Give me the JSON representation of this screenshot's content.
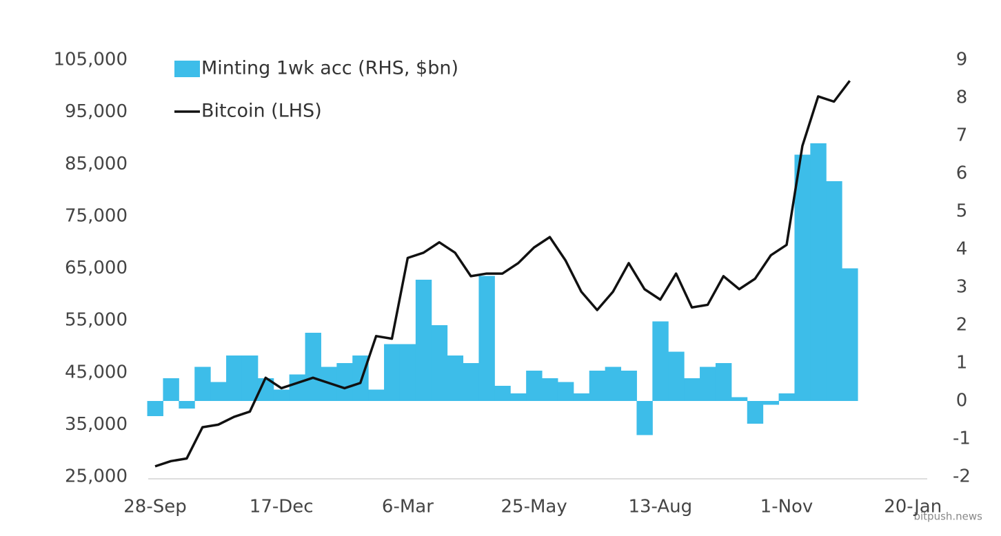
{
  "chart_data": {
    "type": "bar-line",
    "categories": [
      "28-Sep",
      null,
      null,
      null,
      null,
      null,
      null,
      null,
      "17-Dec",
      null,
      null,
      null,
      null,
      null,
      null,
      null,
      "6-Mar",
      null,
      null,
      null,
      null,
      null,
      null,
      null,
      "25-May",
      null,
      null,
      null,
      null,
      null,
      null,
      null,
      "13-Aug",
      null,
      null,
      null,
      null,
      null,
      null,
      null,
      "1-Nov",
      null,
      null,
      null,
      null,
      null,
      null,
      null,
      "20-Jan"
    ],
    "series": [
      {
        "name": "Minting 1wk acc (RHS, $bn)",
        "type": "bar",
        "axis": "y2",
        "color": "#3dbde9",
        "values": [
          -0.4,
          0.6,
          -0.2,
          0.9,
          0.5,
          1.2,
          1.2,
          0.6,
          0.3,
          0.7,
          1.8,
          0.9,
          1.0,
          1.2,
          0.3,
          1.5,
          1.5,
          3.2,
          2.0,
          1.2,
          1.0,
          3.3,
          0.4,
          0.2,
          0.8,
          0.6,
          0.5,
          0.2,
          0.8,
          0.9,
          0.8,
          -0.9,
          2.1,
          1.3,
          0.6,
          0.9,
          1.0,
          0.1,
          -0.6,
          -0.1,
          0.2,
          6.5,
          6.8,
          5.8,
          3.5,
          null,
          null,
          null,
          null
        ]
      },
      {
        "name": "Bitcoin (LHS)",
        "type": "line",
        "color": "#111111",
        "values": [
          27000,
          28000,
          28500,
          34500,
          35000,
          36500,
          37500,
          44000,
          42000,
          43000,
          44000,
          43000,
          42000,
          43000,
          52000,
          51500,
          67000,
          68000,
          70000,
          68000,
          63500,
          64000,
          64000,
          66000,
          69000,
          71000,
          66500,
          60500,
          57000,
          60500,
          66000,
          61000,
          59000,
          64000,
          57500,
          58000,
          63500,
          61000,
          63000,
          67500,
          69500,
          88500,
          98000,
          97000,
          101000,
          null,
          null,
          null,
          null
        ]
      }
    ],
    "ylim": [
      25000,
      105000
    ],
    "yticks": [
      {
        "value": 25000,
        "label": "25,000"
      },
      {
        "value": 35000,
        "label": "35,000"
      },
      {
        "value": 45000,
        "label": "45,000"
      },
      {
        "value": 55000,
        "label": "55,000"
      },
      {
        "value": 65000,
        "label": "65,000"
      },
      {
        "value": 75000,
        "label": "75,000"
      },
      {
        "value": 85000,
        "label": "85,000"
      },
      {
        "value": 95000,
        "label": "95,000"
      },
      {
        "value": 105000,
        "label": "105,000"
      }
    ],
    "y2lim": [
      -2,
      9
    ],
    "y2ticks": [
      -2,
      -1,
      0,
      1,
      2,
      3,
      4,
      5,
      6,
      7,
      8,
      9
    ],
    "legend": "top-left",
    "watermark": "bitpush.news"
  }
}
